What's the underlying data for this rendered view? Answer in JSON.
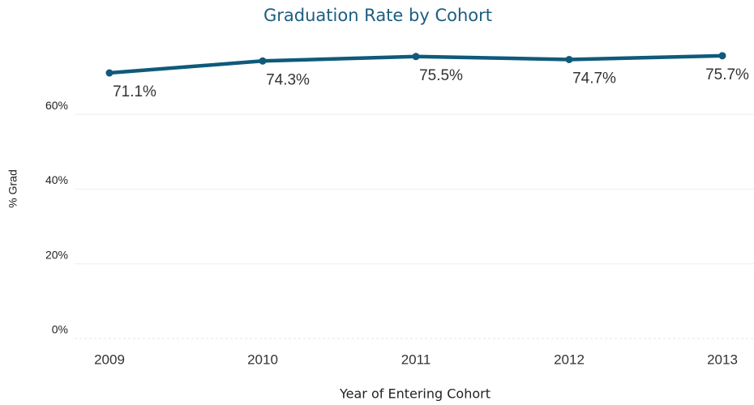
{
  "chart_data": {
    "type": "line",
    "title": "Graduation Rate by Cohort",
    "x_label": "Year of Entering Cohort",
    "y_label": "% Grad",
    "categories": [
      "2009",
      "2010",
      "2011",
      "2012",
      "2013"
    ],
    "series": [
      {
        "name": "% Grad",
        "color": "#0f5a7a",
        "values": [
          71.1,
          74.3,
          75.5,
          74.7,
          75.7
        ],
        "value_labels": [
          "71.1%",
          "74.3%",
          "75.5%",
          "74.7%",
          "75.7%"
        ]
      }
    ],
    "ylim": [
      0,
      80
    ],
    "yticks": [
      {
        "value": 0,
        "label": "0%"
      },
      {
        "value": 20,
        "label": "20%"
      },
      {
        "value": 40,
        "label": "40%"
      },
      {
        "value": 60,
        "label": "60%"
      }
    ],
    "grid": true
  }
}
